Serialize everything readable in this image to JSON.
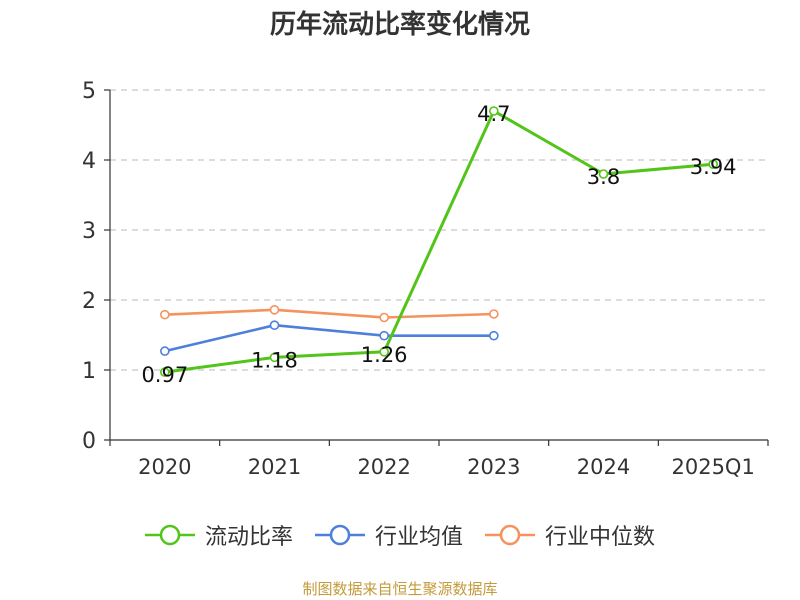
{
  "chart_data": {
    "type": "line",
    "title": "历年流动比率变化情况",
    "categories": [
      "2020",
      "2021",
      "2022",
      "2023",
      "2024",
      "2025Q1"
    ],
    "ylim": [
      0,
      5
    ],
    "yticks": [
      0,
      1,
      2,
      3,
      4,
      5
    ],
    "grid": true,
    "legend_position": "bottom",
    "series": [
      {
        "name": "流动比率",
        "color": "#52c41a",
        "values": [
          0.97,
          1.18,
          1.26,
          4.7,
          3.8,
          3.94
        ],
        "labels": [
          "0.97",
          "1.18",
          "1.26",
          "4.7",
          "3.8",
          "3.94"
        ]
      },
      {
        "name": "行业均值",
        "color": "#4e7fdb",
        "values": [
          1.27,
          1.64,
          1.49,
          1.49,
          null,
          null
        ]
      },
      {
        "name": "行业中位数",
        "color": "#f4935e",
        "values": [
          1.79,
          1.86,
          1.75,
          1.8,
          null,
          null
        ]
      }
    ]
  },
  "source_note": "制图数据来自恒生聚源数据库"
}
